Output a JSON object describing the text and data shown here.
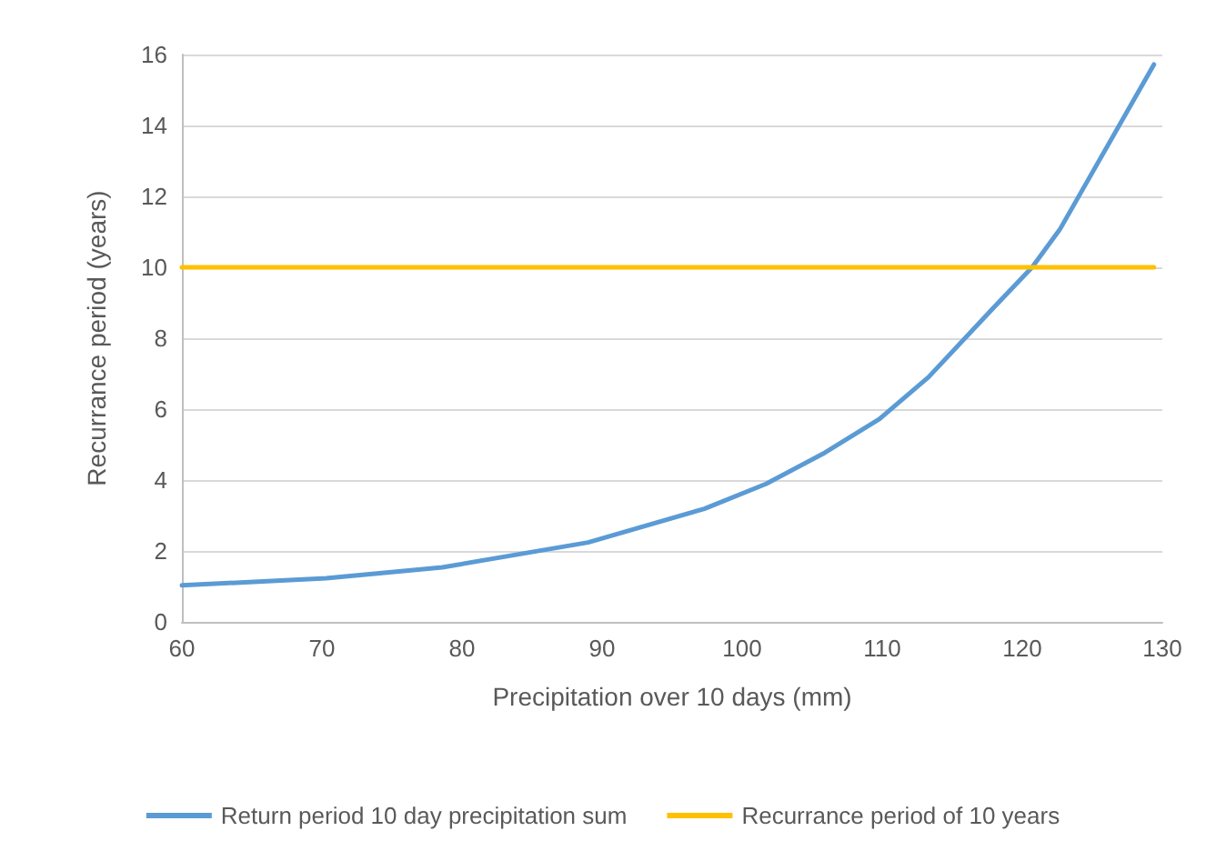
{
  "chart_data": {
    "type": "line",
    "xlabel": "Precipitation over 10 days (mm)",
    "ylabel": "Recurrance period (years)",
    "xlim": [
      60,
      130
    ],
    "xticks": [
      60,
      70,
      80,
      90,
      100,
      110,
      120,
      130
    ],
    "ylim": [
      0,
      16
    ],
    "yticks": [
      0,
      2,
      4,
      6,
      8,
      10,
      12,
      14,
      16
    ],
    "series": [
      {
        "name": "Return period 10 day precipitation sum",
        "color": "#5b9bd5",
        "x": [
          60,
          70.3,
          78.6,
          89,
          97.3,
          101.7,
          105.9,
          109.8,
          113.3,
          117.9,
          120.7,
          122.7,
          129.4
        ],
        "values": [
          1.03,
          1.23,
          1.54,
          2.24,
          3.19,
          3.89,
          4.77,
          5.72,
          6.9,
          8.84,
          10.0,
          11.08,
          15.72
        ]
      },
      {
        "name": "Recurrance period of 10 years",
        "color": "#ffc000",
        "x": [
          60,
          129.4
        ],
        "values": [
          10,
          10
        ]
      }
    ],
    "grid": "y",
    "legend": "bottom",
    "marker": "none",
    "line_style": "solid"
  }
}
